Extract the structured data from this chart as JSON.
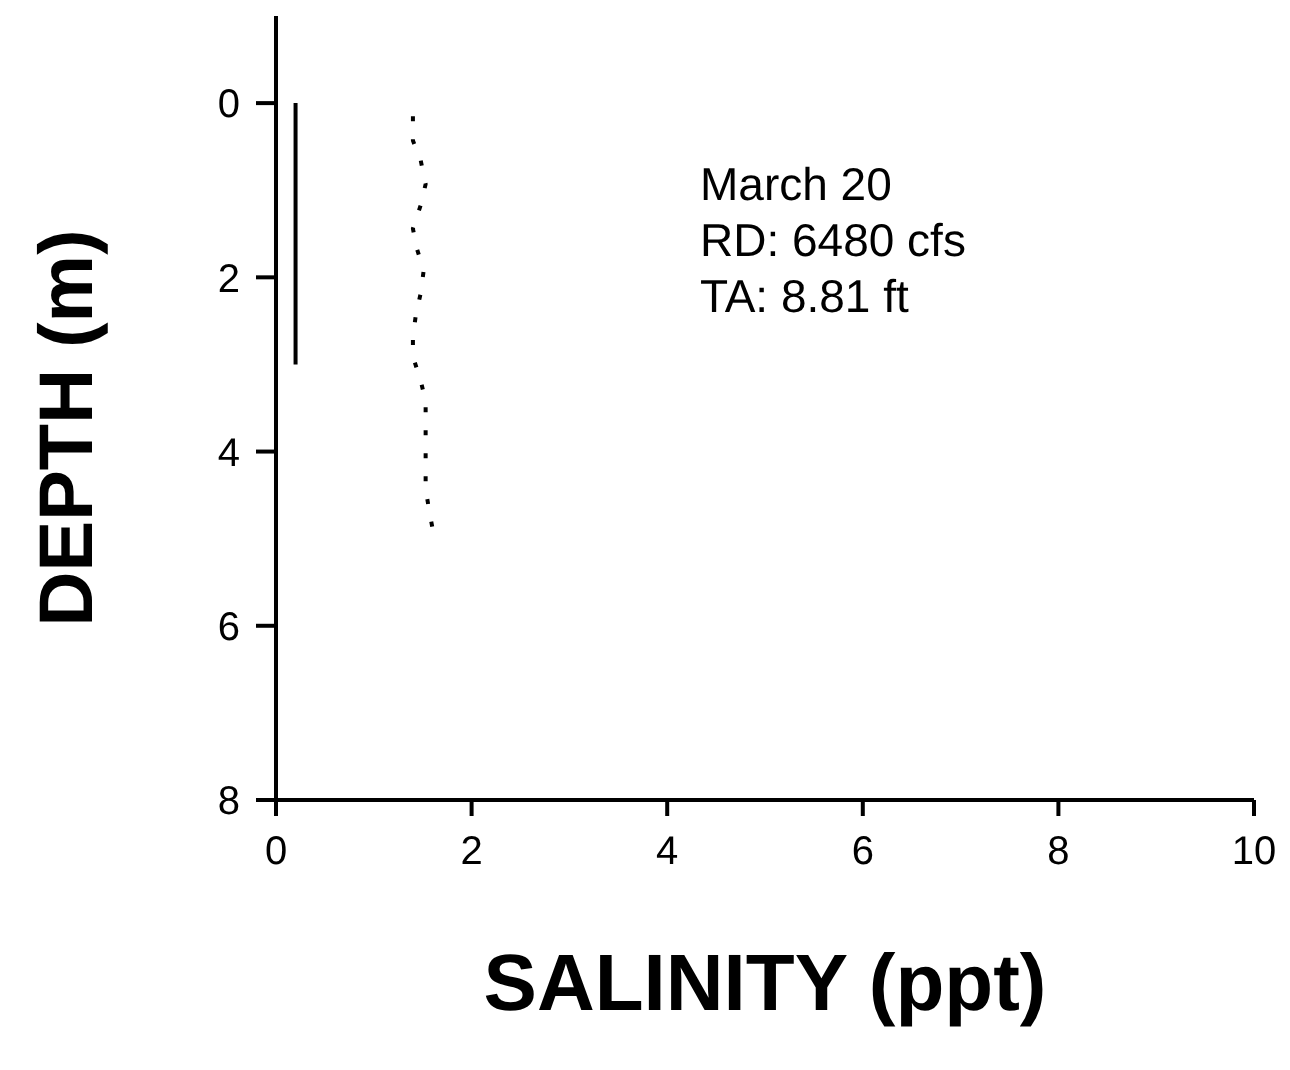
{
  "chart_data": {
    "type": "line",
    "xlabel": "SALINITY (ppt)",
    "ylabel": "DEPTH (m)",
    "xlim": [
      0,
      10
    ],
    "xticks": [
      0,
      2,
      4,
      6,
      8,
      10
    ],
    "ylim": [
      8,
      -1
    ],
    "yticks": [
      0,
      2,
      4,
      6,
      8
    ],
    "marker": "none",
    "annotations": [
      "March 20",
      "RD: 6480 cfs",
      "TA: 8.81 ft"
    ],
    "series": [
      {
        "color": "#000000",
        "line_style": "solid",
        "x": [
          0.2,
          0.2
        ],
        "values": [
          0,
          3
        ]
      },
      {
        "color": "#000000",
        "line_style": "dotted",
        "x": [
          1.4,
          1.4,
          1.48,
          1.53,
          1.48,
          1.4,
          1.44,
          1.51,
          1.48,
          1.43,
          1.4,
          1.4,
          1.48,
          1.53,
          1.53,
          1.53,
          1.53,
          1.53,
          1.57,
          1.61
        ],
        "values": [
          0.15,
          0.43,
          0.66,
          0.93,
          1.17,
          1.44,
          1.67,
          1.92,
          2.18,
          2.43,
          2.68,
          2.91,
          3.19,
          3.42,
          3.69,
          3.92,
          4.2,
          4.43,
          4.7,
          4.94
        ]
      }
    ]
  }
}
